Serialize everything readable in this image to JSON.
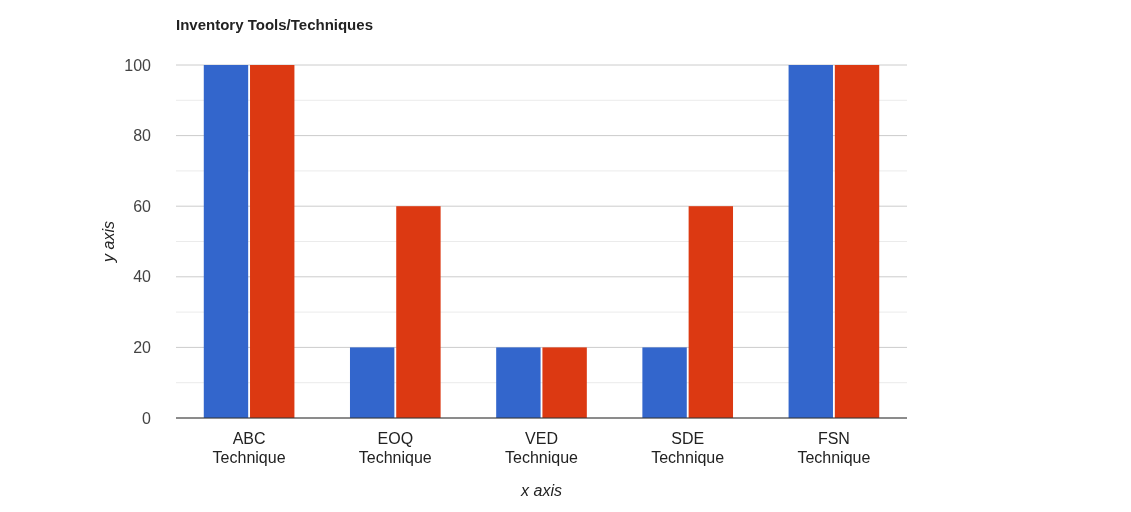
{
  "chart_data": {
    "type": "bar",
    "title": "Inventory Tools/Techniques",
    "xlabel": "x axis",
    "ylabel": "y axis",
    "categories": [
      "ABC Technique",
      "EOQ Technique",
      "VED Technique",
      "SDE Technique",
      "FSN Technique"
    ],
    "series": [
      {
        "color": "#3366cc",
        "values": [
          100,
          20,
          20,
          20,
          100
        ]
      },
      {
        "color": "#dc3912",
        "values": [
          100,
          60,
          20,
          60,
          100
        ]
      }
    ],
    "ylim": [
      0,
      100
    ],
    "yticks": [
      0,
      {
        "value": 10,
        "label": null
      },
      20,
      {
        "value": 30,
        "label": null
      },
      40,
      {
        "value": 50,
        "label": null
      },
      60,
      {
        "value": 70,
        "label": null
      },
      80,
      {
        "value": 90,
        "label": null
      },
      100
    ],
    "grid": "y"
  }
}
